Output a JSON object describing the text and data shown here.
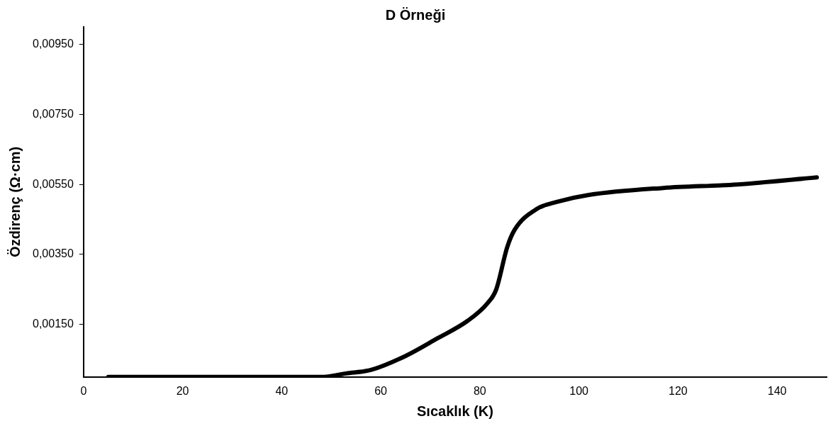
{
  "chart_data": {
    "type": "line",
    "title": "D Örneği",
    "xlabel": "Sıcaklık (K)",
    "ylabel": "Özdirenç (Ω·cm)",
    "x": [
      5,
      20,
      35,
      48,
      53,
      58,
      65,
      71.4,
      77.5,
      81.5,
      83.3,
      85.5,
      87,
      91.5,
      95.5,
      102,
      117,
      132,
      148
    ],
    "series": [
      {
        "color": "#000000",
        "values": [
          0,
          0,
          0,
          0,
          0.0001,
          0.0002,
          0.0006,
          0.0011,
          0.0016,
          0.0021,
          0.0025,
          0.0037,
          0.0042,
          0.0048,
          0.005,
          0.0052,
          0.0054,
          0.0055,
          0.0057
        ]
      }
    ],
    "xlim": [
      0,
      150
    ],
    "xticks": [
      0,
      20,
      40,
      60,
      80,
      100,
      120,
      140
    ],
    "ylim": [
      0,
      0.01
    ],
    "yticks": [
      {
        "value": 0.0015,
        "label": "0,00150"
      },
      {
        "value": 0.0035,
        "label": "0,00350"
      },
      {
        "value": 0.0055,
        "label": "0,00550"
      },
      {
        "value": 0.0075,
        "label": "0,00750"
      },
      {
        "value": 0.0095,
        "label": "0,00950"
      }
    ],
    "grid": false,
    "legend": false,
    "marker": "none",
    "line_style": "solid"
  }
}
